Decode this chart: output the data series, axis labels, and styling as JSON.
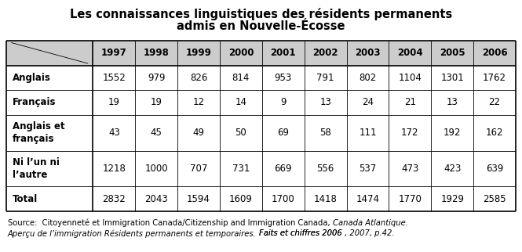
{
  "title_line1": "Les connaissances linguistiques des résidents permanents",
  "title_line2": "admis en Nouvelle-Écosse",
  "years": [
    "1997",
    "1998",
    "1999",
    "2000",
    "2001",
    "2002",
    "2003",
    "2004",
    "2005",
    "2006"
  ],
  "row_labels": [
    "Anglais",
    "Français",
    "Anglais et\nfrançais",
    "Ni l’un ni\nl’autre",
    "Total"
  ],
  "data": [
    [
      1552,
      979,
      826,
      814,
      953,
      791,
      802,
      1104,
      1301,
      1762
    ],
    [
      19,
      19,
      12,
      14,
      9,
      13,
      24,
      21,
      13,
      22
    ],
    [
      43,
      45,
      49,
      50,
      69,
      58,
      111,
      172,
      192,
      162
    ],
    [
      1218,
      1000,
      707,
      731,
      669,
      556,
      537,
      473,
      423,
      639
    ],
    [
      2832,
      2043,
      1594,
      1609,
      1700,
      1418,
      1474,
      1770,
      1929,
      2585
    ]
  ],
  "header_bg": "#cccccc",
  "data_bg": "#ffffff",
  "border_color": "#000000",
  "title_fontsize": 10.5,
  "header_fontsize": 8.5,
  "data_fontsize": 8.5,
  "label_fontsize": 8.5,
  "source_fontsize": 7.2,
  "fig_width": 6.65,
  "fig_height": 3.22,
  "dpi": 100
}
